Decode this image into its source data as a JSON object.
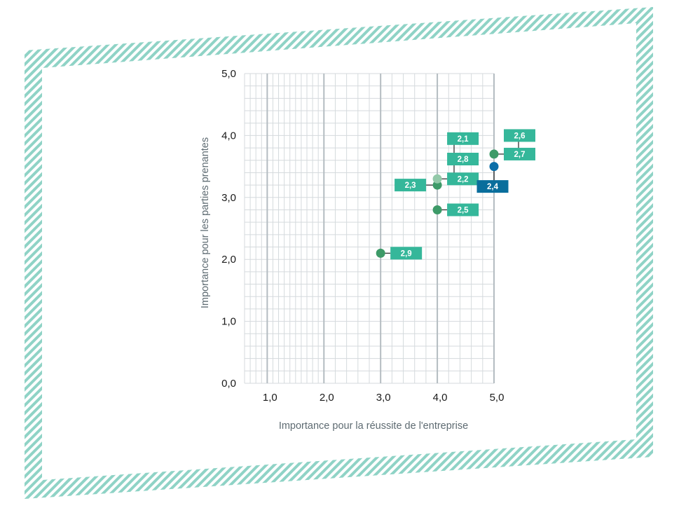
{
  "colors": {
    "frame_stripe": "#8fd3c6",
    "grid_minor": "#d5dadd",
    "grid_major": "#b4bcc1",
    "badge_teal": "#35b79a",
    "badge_blue": "#0a6e9c",
    "point_green": "#3d9a68",
    "point_light": "#93c9a9",
    "point_blue": "#0a6ea8",
    "leader": "#222222"
  },
  "chart_data": {
    "type": "scatter",
    "xlabel": "Importance pour la réussite de l'entreprise",
    "ylabel": "Importance pour les parties prenantes",
    "xlim": [
      0.6,
      5.0
    ],
    "ylim": [
      0.0,
      5.0
    ],
    "x_ticks": [
      {
        "value": 1.0,
        "label": "1,0"
      },
      {
        "value": 2.0,
        "label": "2,0"
      },
      {
        "value": 3.0,
        "label": "3,0"
      },
      {
        "value": 4.0,
        "label": "4,0"
      },
      {
        "value": 5.0,
        "label": "5,0"
      }
    ],
    "y_ticks": [
      {
        "value": 0.0,
        "label": "0,0"
      },
      {
        "value": 1.0,
        "label": "1,0"
      },
      {
        "value": 2.0,
        "label": "2,0"
      },
      {
        "value": 3.0,
        "label": "3,0"
      },
      {
        "value": 4.0,
        "label": "4,0"
      },
      {
        "value": 5.0,
        "label": "5,0"
      }
    ],
    "grid": true,
    "points": [
      {
        "label": "2,9",
        "x": 3.0,
        "y": 2.1,
        "color": "point_green",
        "badge": "teal",
        "label_side": "right",
        "label_y": 2.1
      },
      {
        "label": "2,5",
        "x": 4.0,
        "y": 2.8,
        "color": "point_green",
        "badge": "teal",
        "label_side": "right",
        "label_y": 2.8
      },
      {
        "label": "2,3",
        "x": 4.0,
        "y": 3.2,
        "color": "point_green",
        "badge": "teal",
        "label_side": "left",
        "label_y": 3.2
      },
      {
        "label": "2,2",
        "x": 4.0,
        "y": 3.3,
        "color": "point_light",
        "badge": "teal",
        "label_side": "right",
        "label_y": 3.3
      },
      {
        "label": "2,8",
        "x": 4.0,
        "y": 3.3,
        "color": "point_light",
        "badge": "teal",
        "label_side": "right",
        "label_y": 3.62
      },
      {
        "label": "2,1",
        "x": 4.0,
        "y": 3.3,
        "color": "point_light",
        "badge": "teal",
        "label_side": "right",
        "label_y": 3.95
      },
      {
        "label": "2,4",
        "x": 5.0,
        "y": 3.5,
        "color": "point_blue",
        "badge": "blue",
        "label_side": "below",
        "label_y": 3.2
      },
      {
        "label": "2,7",
        "x": 5.0,
        "y": 3.7,
        "color": "point_green",
        "badge": "teal",
        "label_side": "right",
        "label_y": 3.7
      },
      {
        "label": "2,6",
        "x": 5.0,
        "y": 3.7,
        "color": "point_green",
        "badge": "teal",
        "label_side": "right",
        "label_y": 4.0
      }
    ]
  }
}
